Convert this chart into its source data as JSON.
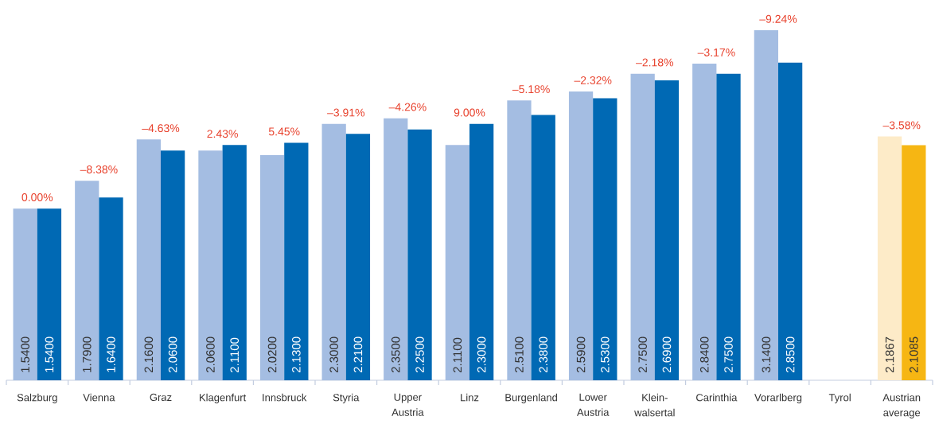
{
  "chart_data": {
    "type": "bar",
    "categories": [
      "Salzburg",
      "Vienna",
      "Graz",
      "Klagenfurt",
      "Innsbruck",
      "Styria",
      "Upper Austria",
      "Linz",
      "Burgenland",
      "Lower Austria",
      "Klein-walsertal",
      "Carinthia",
      "Vorarlberg",
      "Tyrol",
      "Austrian average"
    ],
    "series": [
      {
        "colors": [
          "#a4bde2",
          "#a4bde2",
          "#a4bde2",
          "#a4bde2",
          "#a4bde2",
          "#a4bde2",
          "#a4bde2",
          "#a4bde2",
          "#a4bde2",
          "#a4bde2",
          "#a4bde2",
          "#a4bde2",
          "#a4bde2",
          "#a4bde2",
          "#fdebc8"
        ],
        "values": [
          1.54,
          1.79,
          2.16,
          2.06,
          2.02,
          2.3,
          2.35,
          2.11,
          2.51,
          2.59,
          2.75,
          2.84,
          3.14,
          null,
          2.1867
        ],
        "value_labels": [
          "1.5400",
          "1.7900",
          "2.1600",
          "2.0600",
          "2.0200",
          "2.3000",
          "2.3500",
          "2.1100",
          "2.5100",
          "2.5900",
          "2.7500",
          "2.8400",
          "3.1400",
          null,
          "2.1867"
        ]
      },
      {
        "colors": [
          "#0069b4",
          "#0069b4",
          "#0069b4",
          "#0069b4",
          "#0069b4",
          "#0069b4",
          "#0069b4",
          "#0069b4",
          "#0069b4",
          "#0069b4",
          "#0069b4",
          "#0069b4",
          "#0069b4",
          "#0069b4",
          "#f6b613"
        ],
        "values": [
          1.54,
          1.64,
          2.06,
          2.11,
          2.13,
          2.21,
          2.25,
          2.3,
          2.38,
          2.53,
          2.69,
          2.75,
          2.85,
          null,
          2.1085
        ],
        "value_labels": [
          "1.5400",
          "1.6400",
          "2.0600",
          "2.1100",
          "2.1300",
          "2.2100",
          "2.2500",
          "2.3000",
          "2.3800",
          "2.5300",
          "2.6900",
          "2.7500",
          "2.8500",
          null,
          "2.1085"
        ]
      }
    ],
    "annotations": [
      {
        "text": "0.00%",
        "x": "Salzburg",
        "y": 1.54
      },
      {
        "text": "–8.38%",
        "x": "Vienna",
        "y": 1.79
      },
      {
        "text": "–4.63%",
        "x": "Graz",
        "y": 2.16
      },
      {
        "text": "2.43%",
        "x": "Klagenfurt",
        "y": 2.11
      },
      {
        "text": "5.45%",
        "x": "Innsbruck",
        "y": 2.13
      },
      {
        "text": "–3.91%",
        "x": "Styria",
        "y": 2.3
      },
      {
        "text": "–4.26%",
        "x": "Upper Austria",
        "y": 2.35
      },
      {
        "text": "9.00%",
        "x": "Linz",
        "y": 2.3
      },
      {
        "text": "–5.18%",
        "x": "Burgenland",
        "y": 2.51
      },
      {
        "text": "–2.32%",
        "x": "Lower Austria",
        "y": 2.59
      },
      {
        "text": "–2.18%",
        "x": "Klein-walsertal",
        "y": 2.75
      },
      {
        "text": "–3.17%",
        "x": "Carinthia",
        "y": 2.84
      },
      {
        "text": "–9.24%",
        "x": "Vorarlberg",
        "y": 3.14
      },
      {
        "text": "–3.58%",
        "x": "Austrian average",
        "y": 2.1867
      }
    ]
  }
}
